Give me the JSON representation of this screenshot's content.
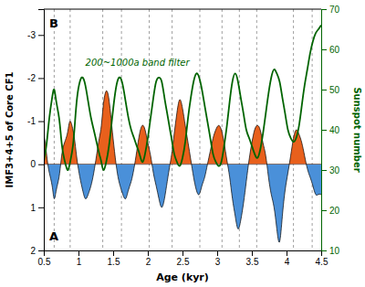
{
  "chart_data": {
    "type": "line",
    "x_label": "Age (kyr)",
    "y_label": "IMF3+4+5 of Core CF1",
    "y2_label": "Sunspot number",
    "annotation": "200~1000a band filter",
    "panel_labels": [
      "A",
      "B"
    ],
    "xlim": [
      0.5,
      4.5
    ],
    "xticks": [
      0.5,
      1,
      1.5,
      2,
      2.5,
      3,
      3.5,
      4,
      4.5
    ],
    "ylim": [
      2.0,
      -3.6
    ],
    "yticks": [
      2,
      1,
      0,
      -1,
      -2,
      -3
    ],
    "y2lim": [
      10,
      70
    ],
    "y2ticks": [
      10,
      20,
      30,
      40,
      50,
      60,
      70
    ],
    "grid": false,
    "hline": 0,
    "vlines": [
      0.65,
      0.88,
      1.35,
      1.62,
      2.02,
      2.35,
      2.75,
      3.07,
      3.32,
      3.57,
      4.1,
      4.37
    ],
    "series": [
      {
        "type": "area",
        "color": "#000000",
        "colors": [
          "#E8601C",
          "#4A90D9"
        ],
        "x": [
          0.5,
          0.52,
          0.55,
          0.58,
          0.62,
          0.65,
          0.68,
          0.72,
          0.75,
          0.78,
          0.82,
          0.85,
          0.88,
          0.92,
          0.95,
          0.98,
          1.02,
          1.06,
          1.1,
          1.14,
          1.18,
          1.22,
          1.26,
          1.3,
          1.33,
          1.36,
          1.4,
          1.44,
          1.48,
          1.52,
          1.56,
          1.6,
          1.64,
          1.68,
          1.72,
          1.76,
          1.8,
          1.84,
          1.88,
          1.92,
          1.96,
          2.0,
          2.04,
          2.08,
          2.12,
          2.16,
          2.2,
          2.24,
          2.28,
          2.32,
          2.35,
          2.38,
          2.42,
          2.46,
          2.5,
          2.54,
          2.58,
          2.62,
          2.66,
          2.7,
          2.74,
          2.78,
          2.82,
          2.86,
          2.9,
          2.94,
          2.98,
          3.02,
          3.06,
          3.1,
          3.14,
          3.18,
          3.22,
          3.26,
          3.3,
          3.34,
          3.38,
          3.42,
          3.46,
          3.5,
          3.54,
          3.58,
          3.62,
          3.66,
          3.7,
          3.74,
          3.78,
          3.82,
          3.86,
          3.9,
          3.94,
          3.98,
          4.02,
          4.06,
          4.1,
          4.14,
          4.18,
          4.22,
          4.26,
          4.3,
          4.34,
          4.38,
          4.42,
          4.46,
          4.5
        ],
        "values": [
          -0.7,
          -0.5,
          -0.1,
          0.2,
          0.5,
          0.8,
          0.6,
          0.3,
          -0.1,
          -0.4,
          -0.6,
          -0.8,
          -1.0,
          -0.8,
          -0.5,
          -0.1,
          0.3,
          0.6,
          0.8,
          0.7,
          0.5,
          0.2,
          -0.2,
          -0.6,
          -0.9,
          -1.4,
          -1.7,
          -1.5,
          -0.9,
          -0.3,
          0.2,
          0.5,
          0.7,
          0.8,
          0.6,
          0.4,
          0.1,
          -0.3,
          -0.7,
          -0.9,
          -0.8,
          -0.5,
          -0.2,
          0.2,
          0.5,
          0.8,
          1.0,
          0.8,
          0.4,
          0.0,
          -0.3,
          -0.7,
          -1.2,
          -1.5,
          -1.3,
          -0.9,
          -0.5,
          -0.1,
          0.3,
          0.6,
          0.7,
          0.5,
          0.3,
          0.0,
          -0.3,
          -0.6,
          -0.8,
          -0.9,
          -0.8,
          -0.5,
          -0.1,
          0.3,
          0.8,
          1.2,
          1.5,
          1.3,
          0.9,
          0.4,
          -0.1,
          -0.5,
          -0.8,
          -0.9,
          -0.8,
          -0.5,
          -0.2,
          0.3,
          0.7,
          1.0,
          1.5,
          1.8,
          1.2,
          0.6,
          0.2,
          -0.2,
          -0.6,
          -0.8,
          -0.7,
          -0.5,
          -0.2,
          0.1,
          0.3,
          0.5,
          0.7,
          0.7,
          0.7
        ]
      },
      {
        "type": "line",
        "axis": "y2",
        "color": "#006400",
        "x": [
          0.5,
          0.52,
          0.55,
          0.58,
          0.62,
          0.65,
          0.68,
          0.72,
          0.75,
          0.78,
          0.82,
          0.85,
          0.88,
          0.92,
          0.95,
          0.98,
          1.02,
          1.06,
          1.1,
          1.14,
          1.18,
          1.22,
          1.26,
          1.3,
          1.33,
          1.36,
          1.4,
          1.44,
          1.48,
          1.52,
          1.56,
          1.6,
          1.64,
          1.68,
          1.72,
          1.76,
          1.8,
          1.84,
          1.88,
          1.92,
          1.96,
          2.0,
          2.04,
          2.08,
          2.12,
          2.16,
          2.2,
          2.24,
          2.28,
          2.32,
          2.35,
          2.38,
          2.42,
          2.46,
          2.5,
          2.54,
          2.58,
          2.62,
          2.66,
          2.7,
          2.74,
          2.78,
          2.82,
          2.86,
          2.9,
          2.94,
          2.98,
          3.02,
          3.06,
          3.1,
          3.14,
          3.18,
          3.22,
          3.26,
          3.3,
          3.34,
          3.38,
          3.42,
          3.46,
          3.5,
          3.54,
          3.58,
          3.62,
          3.66,
          3.7,
          3.74,
          3.78,
          3.82,
          3.86,
          3.9,
          3.94,
          3.98,
          4.02,
          4.06,
          4.1,
          4.14,
          4.18,
          4.22,
          4.26,
          4.3,
          4.34,
          4.38,
          4.42,
          4.46,
          4.5
        ],
        "values": [
          32,
          34,
          38,
          43,
          48,
          50,
          47,
          43,
          38,
          34,
          31,
          30,
          32,
          36,
          42,
          48,
          52,
          53,
          51,
          47,
          43,
          40,
          37,
          34,
          32,
          30,
          32,
          36,
          42,
          48,
          52,
          53,
          51,
          47,
          43,
          40,
          38,
          36,
          34,
          32,
          34,
          38,
          43,
          48,
          52,
          53,
          52,
          48,
          44,
          40,
          37,
          34,
          32,
          31,
          33,
          37,
          43,
          48,
          52,
          54,
          53,
          50,
          46,
          42,
          38,
          34,
          32,
          31,
          32,
          36,
          41,
          47,
          52,
          54,
          52,
          48,
          44,
          40,
          38,
          36,
          34,
          33,
          35,
          39,
          44,
          49,
          53,
          55,
          54,
          52,
          48,
          44,
          40,
          38,
          37,
          38,
          41,
          46,
          51,
          55,
          59,
          62,
          64,
          65,
          66
        ]
      }
    ]
  }
}
